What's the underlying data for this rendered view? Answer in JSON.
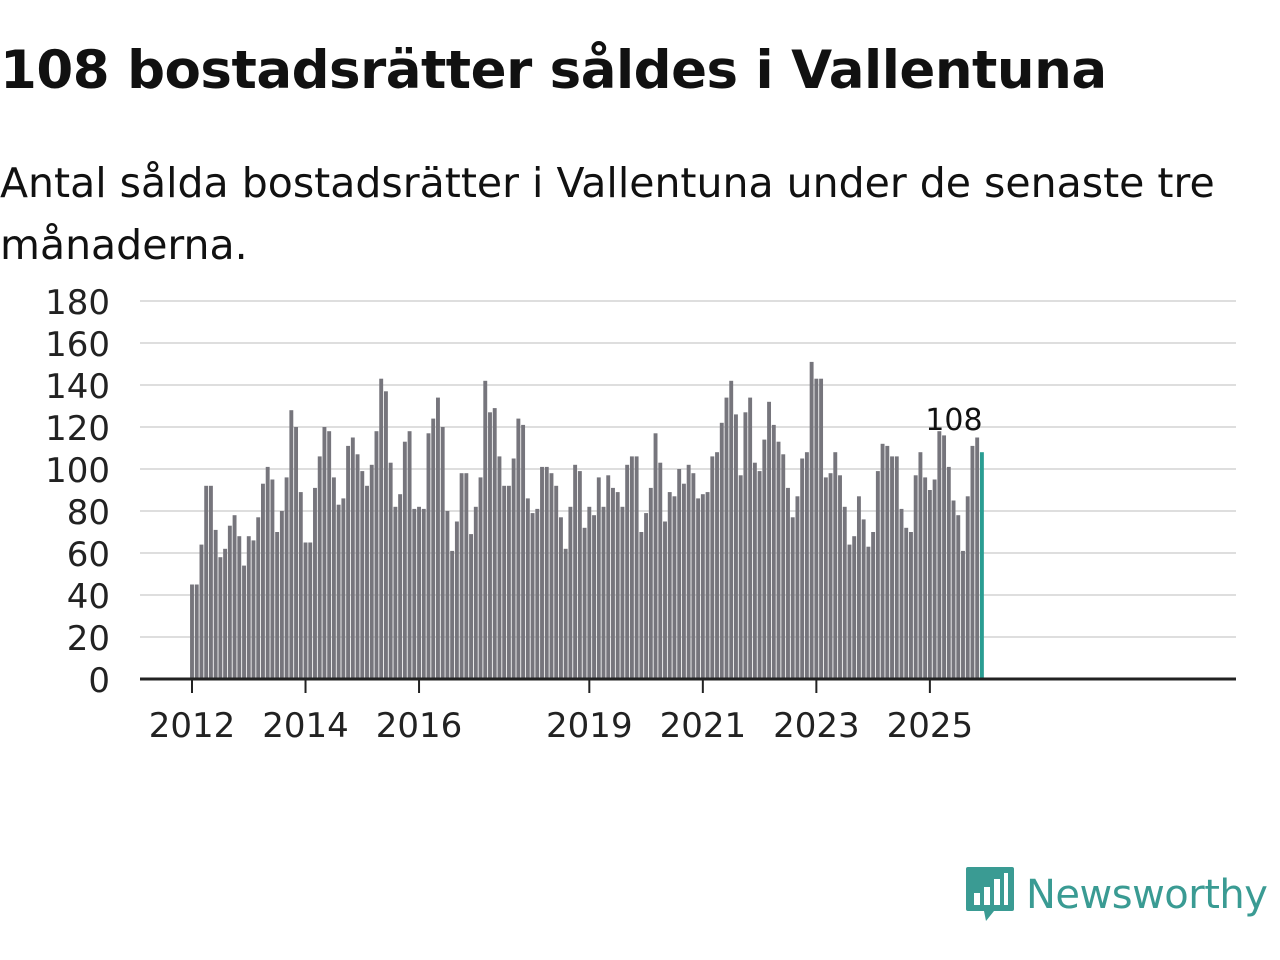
{
  "title": "108 bostadsrätter såldes i Vallentuna",
  "subtitle": "Antal sålda bostadsrätter i Vallentuna under de senaste tre månaderna.",
  "logo": {
    "text": "Newsworthy",
    "icon": "newsworthy-chart-icon"
  },
  "colors": {
    "bar": "#76757c",
    "highlight": "#2a9d92",
    "grid": "#dedede",
    "axis": "#222222",
    "text": "#222222",
    "brand": "#3a9b93"
  },
  "chart_data": {
    "type": "bar",
    "title": "108 bostadsrätter såldes i Vallentuna",
    "xlabel": "",
    "ylabel": "",
    "ylim": [
      0,
      180
    ],
    "yticks": [
      "0",
      "20",
      "40",
      "60",
      "80",
      "100",
      "120",
      "140",
      "160",
      "180"
    ],
    "xticks": [
      {
        "label": "2012",
        "index": 0
      },
      {
        "label": "2014",
        "index": 24
      },
      {
        "label": "2016",
        "index": 48
      },
      {
        "label": "2019",
        "index": 84
      },
      {
        "label": "2021",
        "index": 108
      },
      {
        "label": "2023",
        "index": 132
      },
      {
        "label": "2025",
        "index": 156
      }
    ],
    "start": "2012-01",
    "values": [
      45,
      45,
      64,
      92,
      92,
      71,
      58,
      62,
      73,
      78,
      68,
      54,
      68,
      66,
      77,
      93,
      101,
      95,
      70,
      80,
      96,
      128,
      120,
      89,
      65,
      65,
      91,
      106,
      120,
      118,
      96,
      83,
      86,
      111,
      115,
      107,
      99,
      92,
      102,
      118,
      143,
      137,
      103,
      82,
      88,
      113,
      118,
      81,
      82,
      81,
      117,
      124,
      134,
      120,
      80,
      61,
      75,
      98,
      98,
      69,
      82,
      96,
      142,
      127,
      129,
      106,
      92,
      92,
      105,
      124,
      121,
      86,
      79,
      81,
      101,
      101,
      98,
      92,
      77,
      62,
      82,
      102,
      99,
      72,
      82,
      78,
      96,
      82,
      97,
      91,
      89,
      82,
      102,
      106,
      106,
      70,
      79,
      91,
      117,
      103,
      75,
      89,
      87,
      100,
      93,
      102,
      98,
      86,
      88,
      89,
      106,
      108,
      122,
      134,
      142,
      126,
      97,
      127,
      134,
      103,
      99,
      114,
      132,
      121,
      113,
      107,
      91,
      77,
      87,
      105,
      108,
      151,
      143,
      143,
      96,
      98,
      108,
      97,
      82,
      64,
      68,
      87,
      76,
      63,
      70,
      99,
      112,
      111,
      106,
      106,
      81,
      72,
      70,
      97,
      108,
      96,
      90,
      95,
      118,
      116,
      101,
      85,
      78,
      61,
      87,
      111,
      115,
      108
    ],
    "highlight_index": 167,
    "annotation": "108"
  }
}
